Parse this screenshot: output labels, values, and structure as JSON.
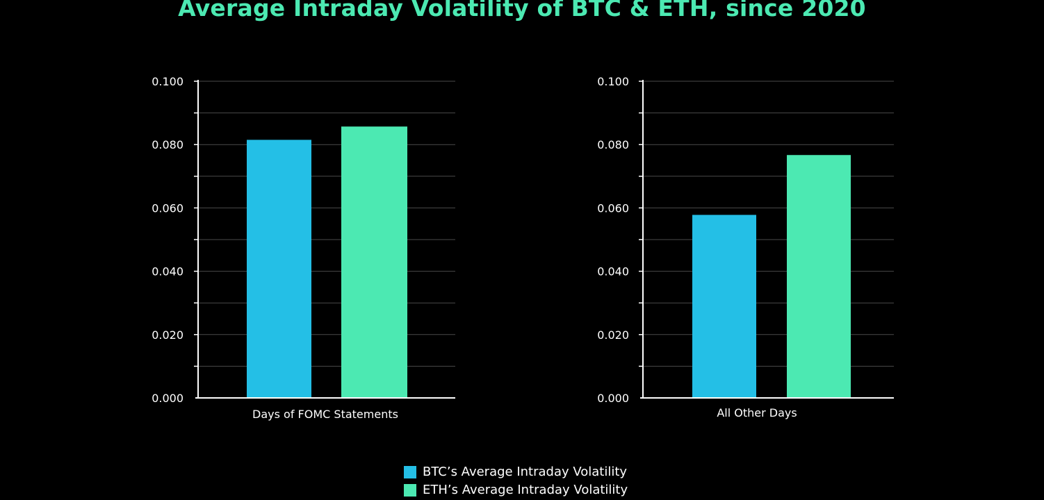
{
  "title": "Average Intraday Volatility of BTC & ETH, since 2020",
  "colors": {
    "btc": "#24bfe6",
    "eth": "#4ce9b2",
    "background": "#000000",
    "text": "#ffffff",
    "grid": "#4a4a4a",
    "axis": "#ffffff"
  },
  "legend": [
    {
      "label": "BTC’s Average Intraday Volatility",
      "color": "#24bfe6"
    },
    {
      "label": "ETH’s Average Intraday Volatility",
      "color": "#4ce9b2"
    }
  ],
  "chart_data": [
    {
      "type": "bar",
      "title": "",
      "categories": [
        "Days of FOMC Statements"
      ],
      "series": [
        {
          "name": "BTC’s Average Intraday Volatility",
          "values": [
            0.0815
          ]
        },
        {
          "name": "ETH’s Average Intraday Volatility",
          "values": [
            0.0857
          ]
        }
      ],
      "xlabel": "Days of FOMC Statements",
      "ylabel": "",
      "ylim": [
        0,
        0.1
      ],
      "yticks": [
        "0.000",
        "0.020",
        "0.040",
        "0.060",
        "0.080",
        "0.100"
      ],
      "grid": true
    },
    {
      "type": "bar",
      "title": "",
      "categories": [
        "All Other Days"
      ],
      "series": [
        {
          "name": "BTC’s Average Intraday Volatility",
          "values": [
            0.0578
          ]
        },
        {
          "name": "ETH’s Average Intraday Volatility",
          "values": [
            0.0767
          ]
        }
      ],
      "xlabel": "All Other Days",
      "ylabel": "",
      "ylim": [
        0,
        0.1
      ],
      "yticks": [
        "0.000",
        "0.020",
        "0.040",
        "0.060",
        "0.080",
        "0.100"
      ],
      "grid": true
    }
  ]
}
